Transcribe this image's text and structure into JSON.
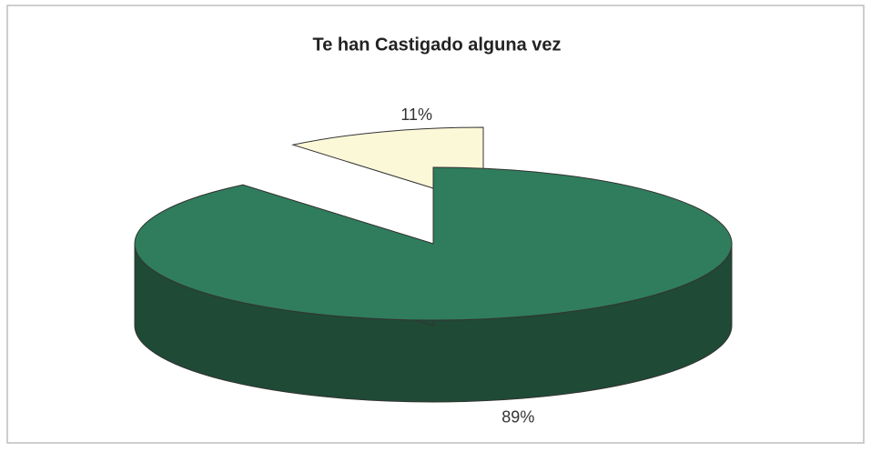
{
  "chart_data": {
    "type": "pie3d",
    "title": "Te han Castigado alguna vez",
    "values": [
      89,
      11
    ],
    "value_labels": [
      "89%",
      "11%"
    ],
    "colors": [
      "#2f7d5c",
      "#fbf8d8"
    ],
    "side_colors": [
      "#1f4a36",
      "#8b8e80"
    ],
    "exploded": [
      false,
      true
    ]
  }
}
